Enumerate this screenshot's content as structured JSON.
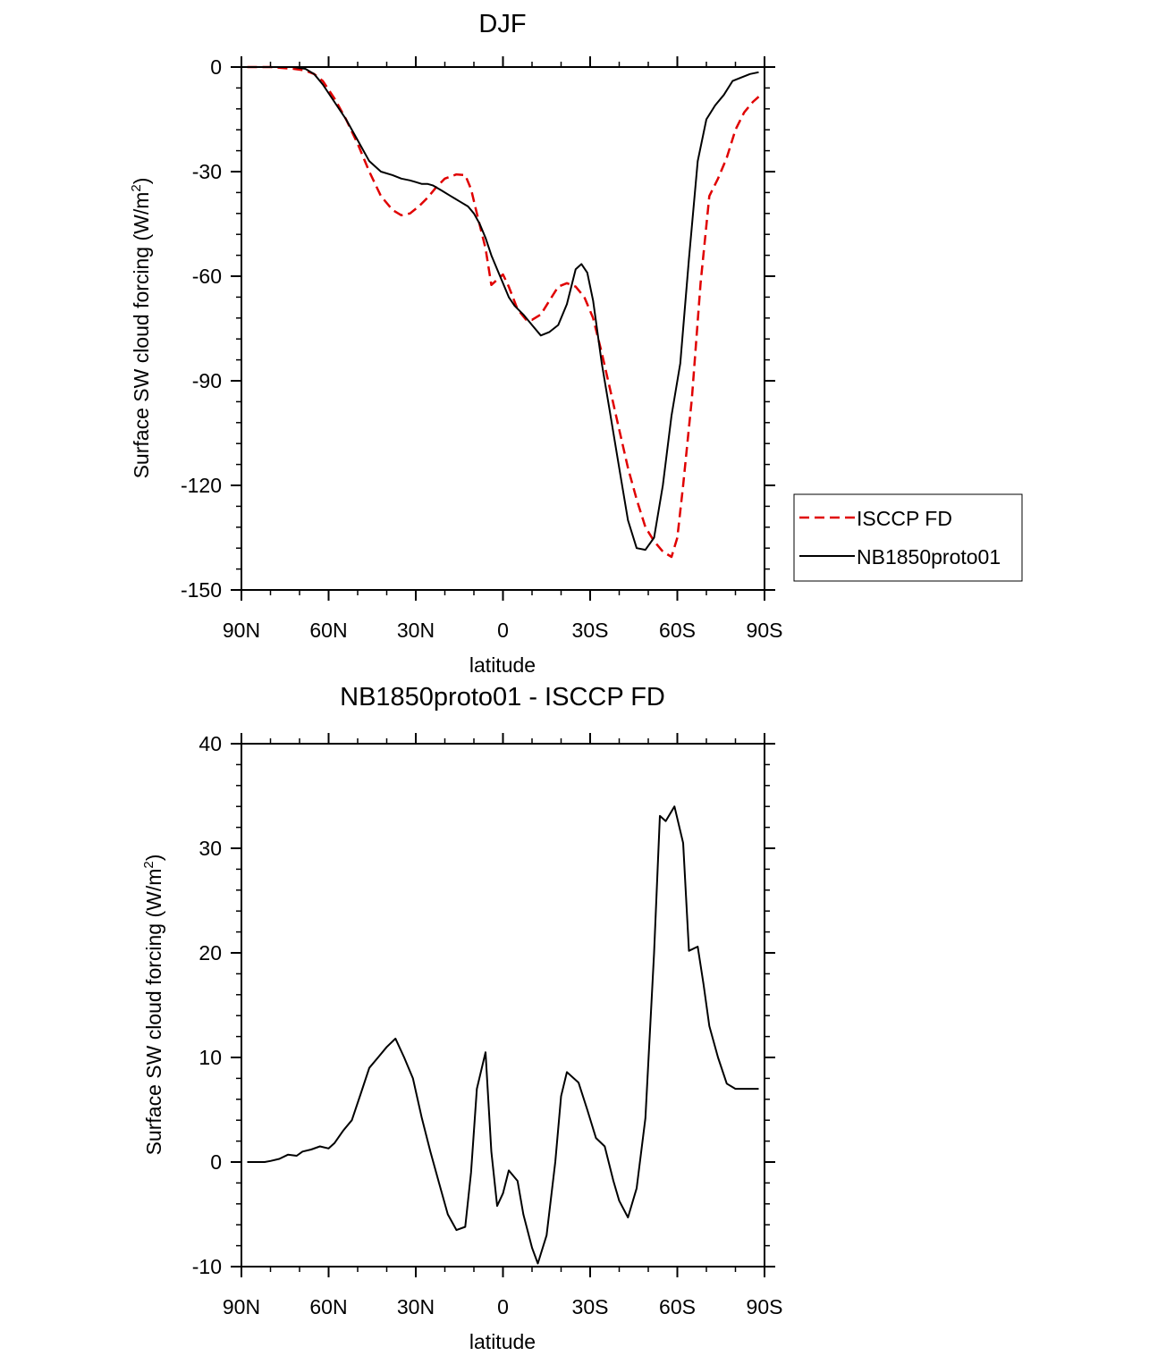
{
  "colors": {
    "obs": "#e00000",
    "model": "#000000",
    "diff": "#000000"
  },
  "chart_data": [
    {
      "type": "line",
      "title": "DJF",
      "xlabel": "latitude",
      "ylabel_main": "Surface SW cloud forcing (W/m",
      "ylabel_sup": "2",
      "ylabel_tail": ")",
      "xlim": [
        -90,
        90
      ],
      "ylim": [
        -150,
        0
      ],
      "x_ticks": [
        -90,
        -60,
        -30,
        0,
        30,
        60,
        90
      ],
      "x_tick_labels": [
        "90N",
        "60N",
        "30N",
        "0",
        "30S",
        "60S",
        "90S"
      ],
      "y_ticks": [
        0,
        -30,
        -60,
        -90,
        -120,
        -150
      ],
      "y_tick_labels": [
        "0",
        "-30",
        "-60",
        "-90",
        "-120",
        "-150"
      ],
      "legend": {
        "position": "right",
        "entries": [
          "ISCCP FD",
          "NB1850proto01"
        ]
      },
      "series": [
        {
          "name": "ISCCP FD",
          "style": "dashed",
          "x": [
            -88,
            -80,
            -72,
            -68,
            -65,
            -62,
            -58,
            -54,
            -50,
            -46,
            -42,
            -38,
            -35,
            -32,
            -29,
            -26,
            -23,
            -20,
            -16,
            -13,
            -11,
            -9,
            -6,
            -4,
            -2,
            0,
            2,
            5,
            8,
            10,
            13,
            16,
            19,
            22,
            25,
            28,
            31,
            34,
            37,
            40,
            43,
            46,
            49,
            52,
            55,
            58,
            60,
            62,
            65,
            68,
            71,
            74,
            77,
            80,
            83,
            86,
            88
          ],
          "values": [
            0,
            0,
            -0.5,
            -1,
            -2,
            -4,
            -9,
            -15,
            -22,
            -30,
            -37,
            -41,
            -42.5,
            -42,
            -40,
            -37.5,
            -34.5,
            -32,
            -30.8,
            -31,
            -35,
            -42,
            -52,
            -62.5,
            -61,
            -59.5,
            -63,
            -69.5,
            -72.5,
            -72.5,
            -71,
            -67,
            -63,
            -62,
            -63,
            -66,
            -72,
            -82,
            -93,
            -104,
            -115,
            -124,
            -132,
            -136,
            -139,
            -140.5,
            -135,
            -120,
            -95,
            -62,
            -37,
            -32,
            -26,
            -18,
            -13,
            -10,
            -8.5
          ]
        },
        {
          "name": "NB1850proto01",
          "style": "solid",
          "x": [
            -88,
            -80,
            -72,
            -68,
            -65,
            -62,
            -58,
            -54,
            -50,
            -46,
            -42,
            -38,
            -35,
            -32,
            -30,
            -28,
            -26,
            -24,
            -21,
            -18,
            -15,
            -12,
            -10,
            -8,
            -6,
            -4,
            -2,
            0,
            2,
            4,
            7,
            10,
            13,
            16,
            19,
            22,
            25,
            27,
            29,
            31,
            34,
            37,
            40,
            43,
            46,
            49,
            52,
            55,
            58,
            61,
            64,
            67,
            70,
            73,
            76,
            79,
            82,
            85,
            88
          ],
          "values": [
            0,
            0,
            0,
            -0.5,
            -2,
            -5,
            -10,
            -15,
            -21,
            -27,
            -30,
            -31,
            -32,
            -32.5,
            -33,
            -33.5,
            -33.5,
            -34,
            -35.5,
            -37,
            -38.5,
            -40,
            -42,
            -45,
            -49,
            -54,
            -58,
            -62,
            -66,
            -68.5,
            -71,
            -74,
            -77,
            -76,
            -74,
            -68,
            -58,
            -56.5,
            -59,
            -67,
            -85,
            -100,
            -115,
            -130,
            -138,
            -138.5,
            -135,
            -120,
            -100,
            -85,
            -55,
            -27,
            -15,
            -11,
            -8,
            -4,
            -3,
            -2,
            -1.5
          ]
        }
      ]
    },
    {
      "type": "line",
      "title": "NB1850proto01 - ISCCP FD",
      "xlabel": "latitude",
      "ylabel_main": "Surface SW cloud forcing (W/m",
      "ylabel_sup": "2",
      "ylabel_tail": ")",
      "xlim": [
        -90,
        90
      ],
      "ylim": [
        -10,
        40
      ],
      "x_ticks": [
        -90,
        -60,
        -30,
        0,
        30,
        60,
        90
      ],
      "x_tick_labels": [
        "90N",
        "60N",
        "30N",
        "0",
        "30S",
        "60S",
        "90S"
      ],
      "y_ticks": [
        40,
        30,
        20,
        10,
        0,
        -10
      ],
      "y_tick_labels": [
        "40",
        "30",
        "20",
        "10",
        "0",
        "-10"
      ],
      "series": [
        {
          "name": "NB1850proto01 - ISCCP FD",
          "style": "solid",
          "x": [
            -88,
            -82,
            -80,
            -77,
            -74,
            -71,
            -69,
            -66,
            -63,
            -60,
            -58,
            -55,
            -52,
            -49,
            -46,
            -43,
            -40,
            -37,
            -34,
            -31,
            -28,
            -25,
            -22,
            -19,
            -16,
            -13,
            -11,
            -9,
            -6,
            -4,
            -2,
            0,
            2,
            5,
            7,
            10,
            12,
            15,
            18,
            20,
            22,
            26,
            29,
            32,
            35,
            38,
            40,
            43,
            46,
            49,
            52,
            54,
            56,
            59,
            62,
            64,
            67,
            69,
            71,
            74,
            77,
            80,
            83,
            86,
            88
          ],
          "values": [
            0,
            0,
            0.1,
            0.3,
            0.7,
            0.6,
            1.0,
            1.2,
            1.5,
            1.3,
            1.8,
            3.0,
            4.0,
            6.5,
            9.0,
            10.0,
            11.0,
            11.8,
            10.0,
            8.0,
            4.3,
            1.0,
            -2.0,
            -5.0,
            -6.5,
            -6.2,
            -1.0,
            7.0,
            10.5,
            1.0,
            -4.2,
            -3.0,
            -0.8,
            -1.8,
            -5.0,
            -8.2,
            -9.7,
            -7.0,
            0.0,
            6.3,
            8.6,
            7.6,
            5.0,
            2.3,
            1.5,
            -1.8,
            -3.7,
            -5.3,
            -2.5,
            4.2,
            20.0,
            33.1,
            32.6,
            34.0,
            30.5,
            20.2,
            20.6,
            17.0,
            13.0,
            10.0,
            7.5,
            7.0,
            7.0,
            7.0,
            7.0
          ]
        }
      ]
    }
  ]
}
